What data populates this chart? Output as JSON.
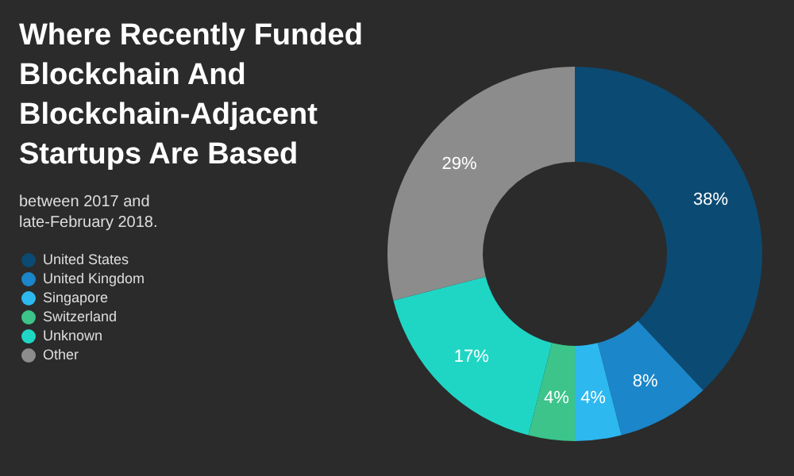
{
  "chart_data": {
    "type": "donut",
    "title": "Where Recently Funded Blockchain And Blockchain-Adjacent Startups Are Based",
    "subtitle": "between 2017 and late-February 2018.",
    "categories": [
      "United States",
      "United Kingdom",
      "Singapore",
      "Switzerland",
      "Unknown",
      "Other"
    ],
    "values": [
      38,
      8,
      4,
      4,
      17,
      29
    ],
    "value_labels": [
      "38%",
      "8%",
      "4%",
      "4%",
      "17%",
      "29%"
    ],
    "colors": [
      "#0b4a72",
      "#1b86c9",
      "#2db8ef",
      "#3cc48a",
      "#1fd6c4",
      "#8c8c8c"
    ],
    "legend": "left"
  }
}
